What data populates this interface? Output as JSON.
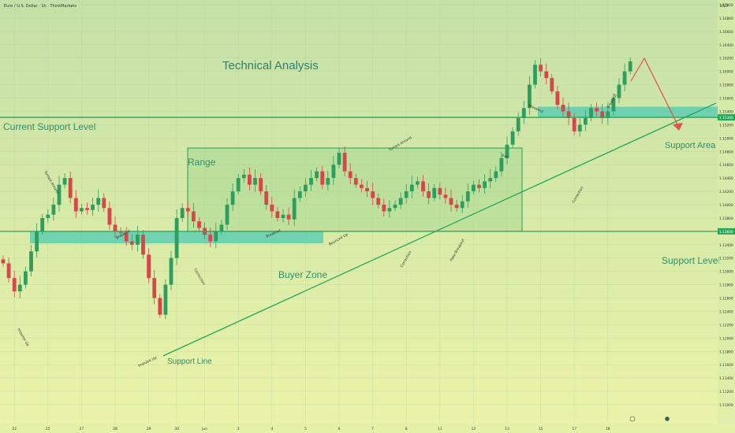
{
  "chart_data": {
    "type": "candlestick",
    "symbol_line": "Euro / U.S. Dollar · 1h · ThinkMarkets",
    "currency": "USD",
    "title": "Technical Analysis",
    "x_ticks": [
      "22",
      "25",
      "27",
      "28",
      "29",
      "30",
      "Jun",
      "3",
      "4",
      "5",
      "6",
      "7",
      "8",
      "11",
      "12",
      "13",
      "15",
      "17",
      "18"
    ],
    "x_tick_bar_index": [
      2,
      8,
      14,
      20,
      26,
      31,
      36,
      42,
      48,
      54,
      60,
      66,
      72,
      78,
      84,
      90,
      96,
      102,
      108
    ],
    "y_ticks": [
      1.17,
      1.168,
      1.166,
      1.164,
      1.162,
      1.16,
      1.158,
      1.156,
      1.154,
      1.152,
      1.15,
      1.148,
      1.146,
      1.144,
      1.142,
      1.14,
      1.138,
      1.136,
      1.134,
      1.132,
      1.13,
      1.128,
      1.126,
      1.124,
      1.122,
      1.12,
      1.118,
      1.116,
      1.114,
      1.112,
      1.11
    ],
    "y_tick_labels": [
      "1.17000",
      "1.16800",
      "1.16600",
      "1.16400",
      "1.16200",
      "1.16000",
      "1.15800",
      "1.15600",
      "1.15400",
      "1.15200",
      "1.15000",
      "1.14800",
      "1.14600",
      "1.14400",
      "1.14200",
      "1.14000",
      "1.13800",
      "1.13600",
      "1.13400",
      "1.13200",
      "1.13000",
      "1.12800",
      "1.12600",
      "1.12400",
      "1.12200",
      "1.12000",
      "1.11800",
      "1.11600",
      "1.11400",
      "1.11200",
      "1.11000"
    ],
    "ylim": [
      1.109,
      1.1715
    ],
    "bar_count": 113,
    "close_prices": [
      1.1312,
      1.129,
      1.127,
      1.128,
      1.13,
      1.133,
      1.136,
      1.138,
      1.1385,
      1.14,
      1.143,
      1.144,
      1.141,
      1.139,
      1.1395,
      1.1392,
      1.14,
      1.141,
      1.1395,
      1.137,
      1.136,
      1.1358,
      1.1345,
      1.134,
      1.1355,
      1.1325,
      1.129,
      1.126,
      1.1235,
      1.128,
      1.132,
      1.138,
      1.1395,
      1.139,
      1.1375,
      1.1365,
      1.1355,
      1.1345,
      1.136,
      1.137,
      1.14,
      1.142,
      1.144,
      1.1445,
      1.143,
      1.144,
      1.142,
      1.14,
      1.139,
      1.138,
      1.1385,
      1.1378,
      1.141,
      1.142,
      1.143,
      1.144,
      1.145,
      1.143,
      1.144,
      1.146,
      1.1478,
      1.145,
      1.144,
      1.143,
      1.1425,
      1.142,
      1.141,
      1.14,
      1.139,
      1.1395,
      1.14,
      1.141,
      1.142,
      1.143,
      1.1435,
      1.142,
      1.141,
      1.1425,
      1.1415,
      1.141,
      1.14,
      1.1395,
      1.1405,
      1.142,
      1.143,
      1.1425,
      1.1435,
      1.144,
      1.145,
      1.147,
      1.149,
      1.151,
      1.153,
      1.1545,
      1.158,
      1.161,
      1.16,
      1.159,
      1.157,
      1.155,
      1.154,
      1.153,
      1.151,
      1.152,
      1.153,
      1.1545,
      1.154,
      1.153,
      1.154,
      1.156,
      1.158,
      1.16,
      1.1615
    ],
    "current_price_label": "1.15300",
    "support_price_label": "1.13600",
    "annotations": {
      "current_support": "Current Support Level",
      "support_level": "Support Level",
      "support_area": "Support Area",
      "range": "Range",
      "buyer_zone": "Buyer Zone",
      "support_line": "Support Line",
      "small": [
        "Turned Around",
        "Breakout",
        "Correction",
        "Impulse Up",
        "Breakout",
        "Bounced Up",
        "Turned Around",
        "Correction",
        "Fake Breakout",
        "Exit",
        "Breakout",
        "Correction",
        "Breakout",
        "Impulse Up",
        "Higher Trend"
      ]
    },
    "colors": {
      "bg_top": "#c7e1a6",
      "bg_bottom": "#e9f2a8",
      "up": "#2e9e5e",
      "down": "#d9464a",
      "line": "#26a65b",
      "zone": "#4fc9b3",
      "text_dark": "#2f8f6d",
      "arrow": "#e25549"
    }
  }
}
